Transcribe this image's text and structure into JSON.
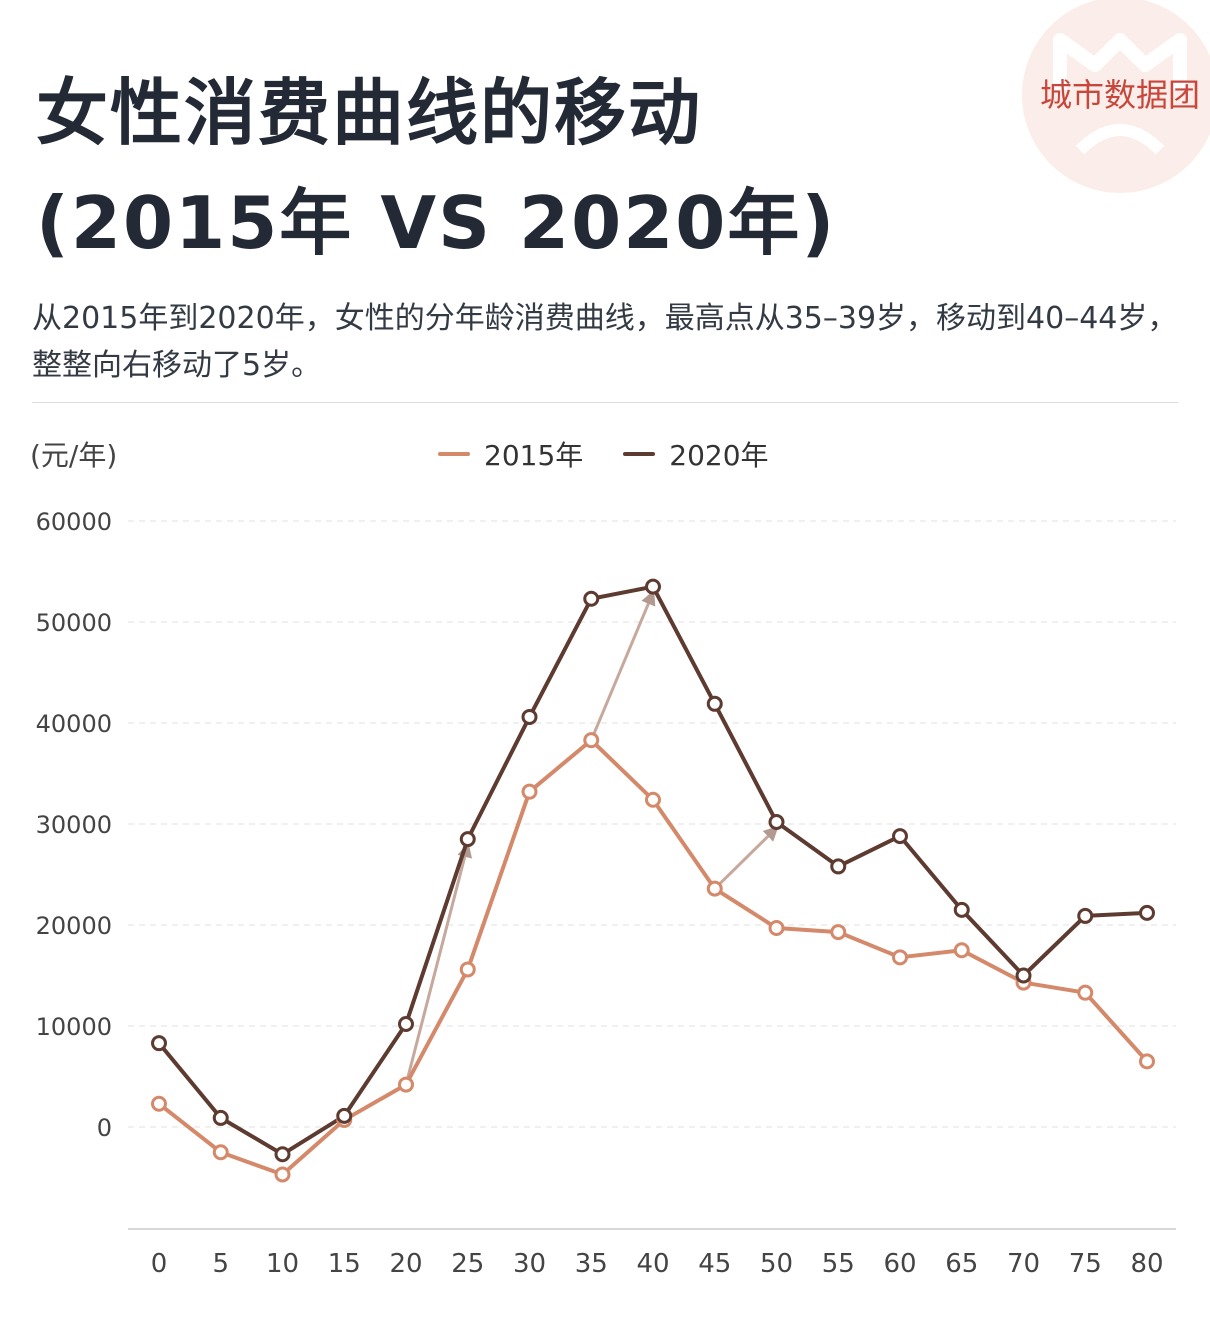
{
  "header": {
    "title_line1": "女性消费曲线的移动",
    "title_line2": "(2015年 VS 2020年)",
    "subtitle": "从2015年到2020年，女性的分年龄消费曲线，最高点从35–39岁，移动到40–44岁，整整向右移动了5岁。"
  },
  "logo": {
    "text": "城市数据团",
    "color": "#c8463a"
  },
  "chart_data": {
    "type": "line",
    "ylabel": "(元/年)",
    "x": [
      0,
      5,
      10,
      15,
      20,
      25,
      30,
      35,
      40,
      45,
      50,
      55,
      60,
      65,
      70,
      75,
      80
    ],
    "ylim": [
      -10000,
      60000
    ],
    "yticks": [
      0,
      10000,
      20000,
      30000,
      40000,
      50000,
      60000
    ],
    "series": [
      {
        "name": "2015年",
        "color": "#d4896a",
        "values": [
          2300,
          -2500,
          -4700,
          700,
          4200,
          15600,
          33200,
          38300,
          32400,
          23600,
          19700,
          19300,
          16800,
          17500,
          14300,
          13300,
          6500
        ]
      },
      {
        "name": "2020年",
        "color": "#5e3b30",
        "values": [
          8300,
          900,
          -2700,
          1100,
          10200,
          28500,
          40600,
          52300,
          53500,
          41900,
          30200,
          25800,
          28800,
          21500,
          15000,
          20900,
          21200
        ]
      }
    ],
    "annotations": [
      {
        "type": "arrow",
        "from": [
          20,
          4200
        ],
        "to": [
          25,
          28500
        ],
        "color": "#c6a89c"
      },
      {
        "type": "arrow",
        "from": [
          35,
          38300
        ],
        "to": [
          40,
          53500
        ],
        "color": "#c6a89c"
      },
      {
        "type": "arrow",
        "from": [
          45,
          23600
        ],
        "to": [
          50,
          30200
        ],
        "color": "#c6a89c"
      }
    ],
    "grid": true,
    "legend_position": "top-center"
  }
}
